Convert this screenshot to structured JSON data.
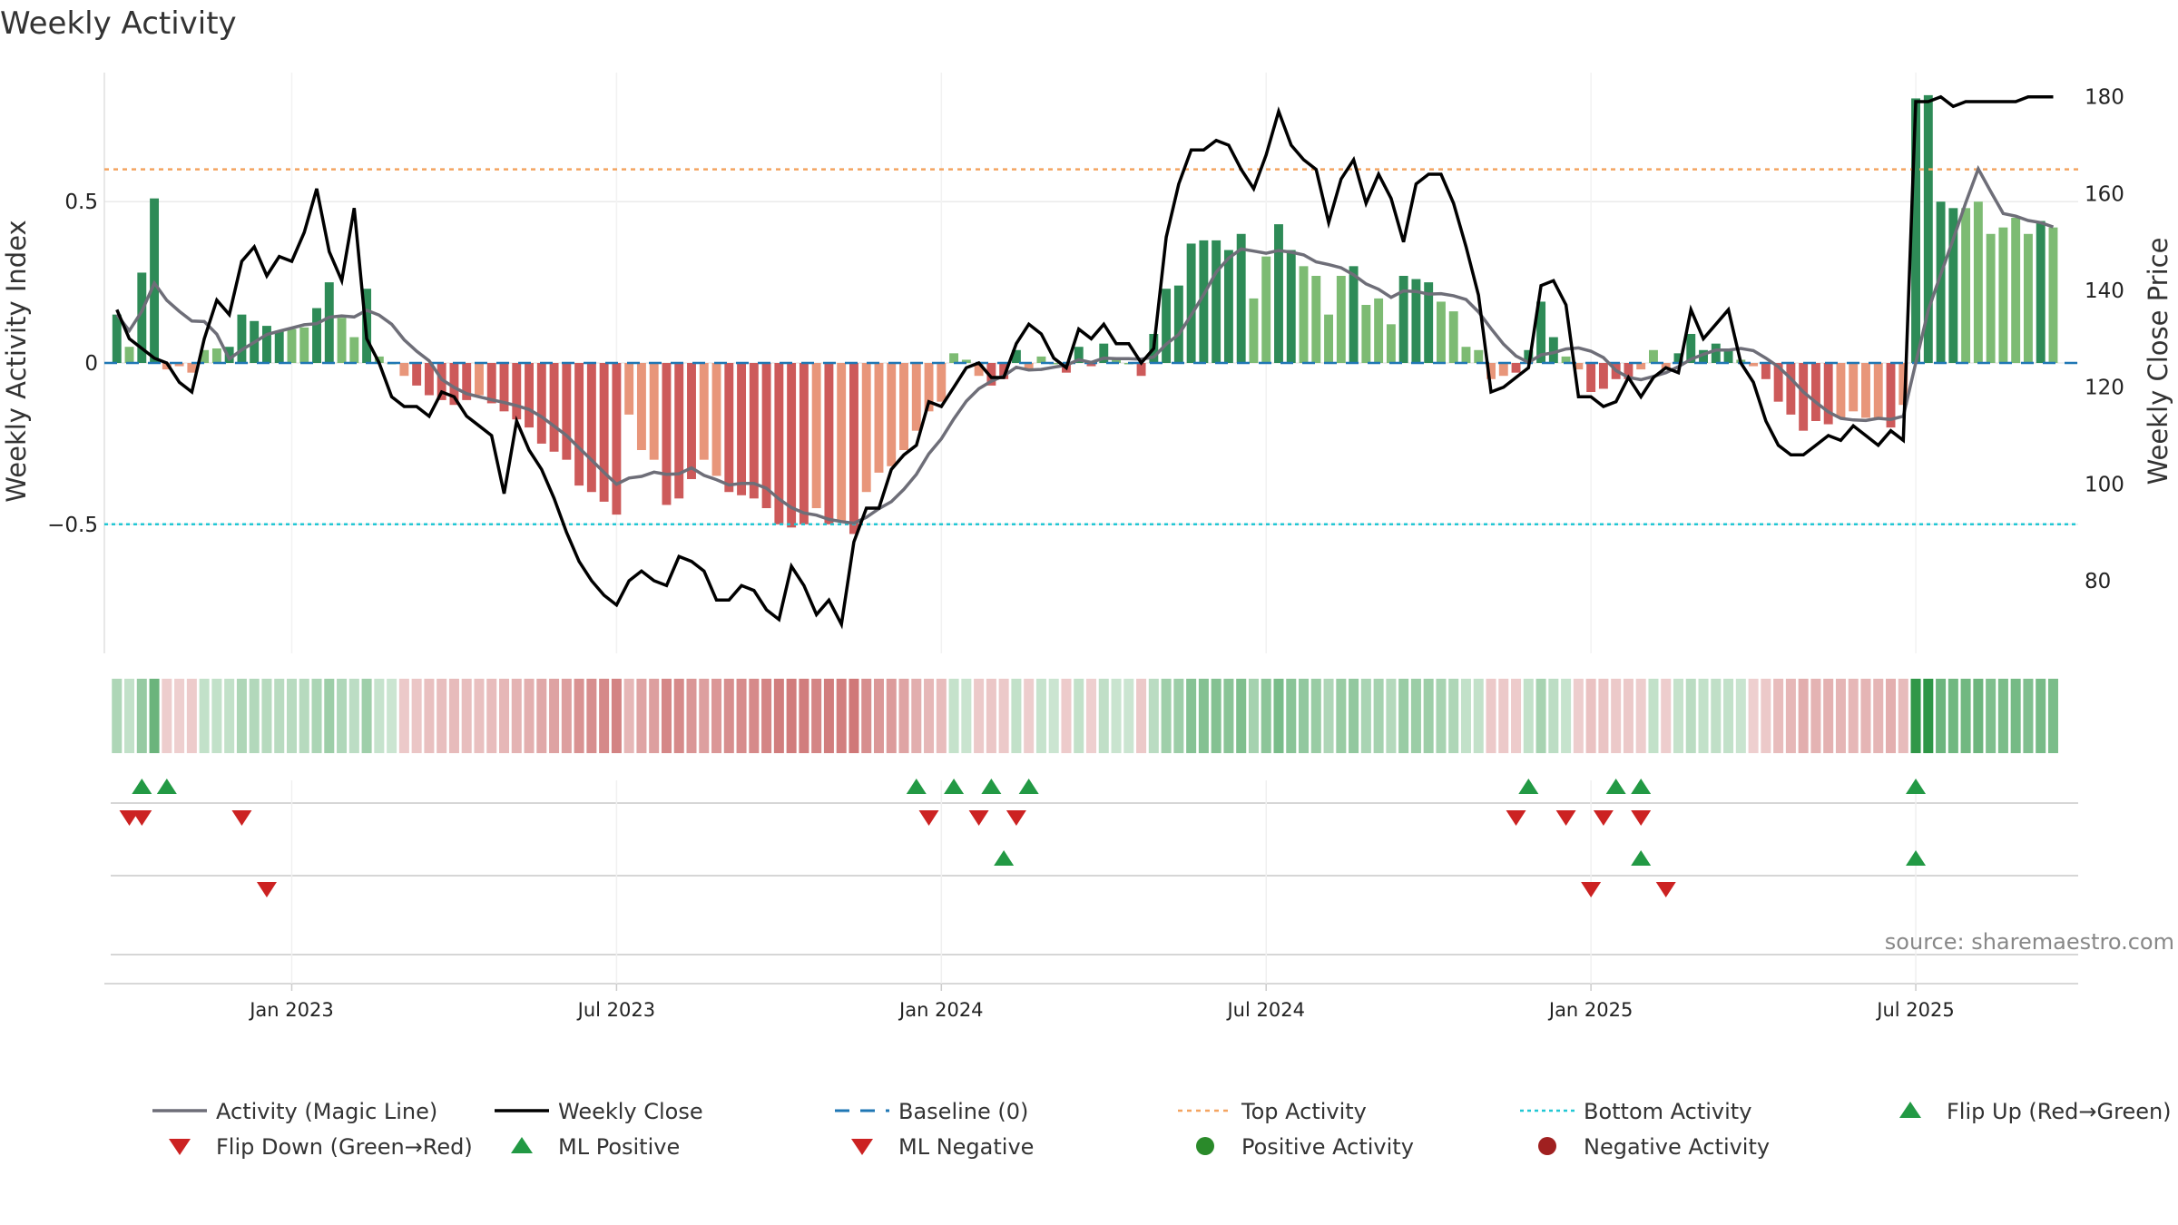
{
  "chart_data": {
    "type": "bar",
    "title": "Weekly Activity",
    "ylabel_left": "Weekly Activity Index",
    "ylabel_right": "Weekly Close Price",
    "ylim_left": [
      -0.9,
      0.9
    ],
    "ylim_right": [
      65,
      185
    ],
    "yticks_left": [
      {
        "v": 0.5,
        "label": "0.5"
      },
      {
        "v": 0,
        "label": "0"
      },
      {
        "v": -0.5,
        "label": "−0.5"
      }
    ],
    "yticks_right": [
      {
        "v": 180,
        "label": "180"
      },
      {
        "v": 160,
        "label": "160"
      },
      {
        "v": 140,
        "label": "140"
      },
      {
        "v": 120,
        "label": "120"
      },
      {
        "v": 100,
        "label": "100"
      },
      {
        "v": 80,
        "label": "80"
      }
    ],
    "x_week_range": [
      -8,
      150
    ],
    "xticks": [
      {
        "week": 7,
        "label": "Jan 2023"
      },
      {
        "week": 33,
        "label": "Jul 2023"
      },
      {
        "week": 59,
        "label": "Jan 2024"
      },
      {
        "week": 85,
        "label": "Jul 2024"
      },
      {
        "week": 111,
        "label": "Jan 2025"
      },
      {
        "week": 137,
        "label": "Jul 2025"
      }
    ],
    "top_activity": 0.6,
    "bottom_activity": -0.5,
    "baseline": 0,
    "colors": {
      "strong_green": "#2e8b57",
      "light_green": "#7dbb73",
      "strong_red": "#cd5a5a",
      "light_red": "#e8967a",
      "magic_line": "#6e6e78",
      "close_line": "#000000",
      "baseline": "#1f77b4",
      "top_line": "#f4a460",
      "bottom_line": "#22c7d4",
      "flip_up": "#229944",
      "flip_down": "#cc2222",
      "pos_dot": "#2a8a2a",
      "neg_dot": "#a02020"
    },
    "activity_anchors": [
      [
        -7,
        0.15
      ],
      [
        -6,
        0.05
      ],
      [
        -4,
        0.51
      ],
      [
        -3,
        -0.02
      ],
      [
        -2,
        -0.01
      ],
      [
        -1,
        -0.03
      ],
      [
        0,
        0.04
      ],
      [
        2,
        0.05
      ],
      [
        3,
        0.15
      ],
      [
        4,
        0.13
      ],
      [
        6,
        0.1
      ],
      [
        8,
        0.11
      ],
      [
        9,
        0.17
      ],
      [
        10,
        0.25
      ],
      [
        11,
        0.14
      ],
      [
        12,
        0.08
      ],
      [
        13,
        0.23
      ],
      [
        14,
        0.02
      ],
      [
        15,
        0.0
      ],
      [
        16,
        -0.04
      ],
      [
        18,
        -0.1
      ],
      [
        20,
        -0.13
      ],
      [
        22,
        -0.1
      ],
      [
        24,
        -0.15
      ],
      [
        26,
        -0.2
      ],
      [
        27,
        -0.25
      ],
      [
        29,
        -0.3
      ],
      [
        30,
        -0.38
      ],
      [
        31,
        -0.4
      ],
      [
        32,
        -0.43
      ],
      [
        33,
        -0.47
      ],
      [
        34,
        -0.16
      ],
      [
        35,
        -0.27
      ],
      [
        36,
        -0.3
      ],
      [
        37,
        -0.44
      ],
      [
        38,
        -0.42
      ],
      [
        40,
        -0.3
      ],
      [
        42,
        -0.4
      ],
      [
        44,
        -0.42
      ],
      [
        45,
        -0.45
      ],
      [
        46,
        -0.5
      ],
      [
        47,
        -0.51
      ],
      [
        48,
        -0.5
      ],
      [
        49,
        -0.45
      ],
      [
        50,
        -0.5
      ],
      [
        51,
        -0.49
      ],
      [
        52,
        -0.53
      ],
      [
        53,
        -0.4
      ],
      [
        54,
        -0.34
      ],
      [
        55,
        -0.32
      ],
      [
        56,
        -0.27
      ],
      [
        57,
        -0.21
      ],
      [
        58,
        -0.15
      ],
      [
        59,
        -0.12
      ],
      [
        60,
        0.03
      ],
      [
        61,
        0.01
      ],
      [
        62,
        -0.04
      ],
      [
        63,
        -0.07
      ],
      [
        64,
        -0.05
      ],
      [
        65,
        0.04
      ],
      [
        66,
        -0.02
      ],
      [
        67,
        0.02
      ],
      [
        68,
        0.0
      ],
      [
        69,
        -0.03
      ],
      [
        70,
        0.05
      ],
      [
        71,
        -0.01
      ],
      [
        72,
        0.06
      ],
      [
        73,
        0.01
      ],
      [
        74,
        0.0
      ],
      [
        75,
        -0.04
      ],
      [
        76,
        0.09
      ],
      [
        77,
        0.23
      ],
      [
        78,
        0.24
      ],
      [
        79,
        0.37
      ],
      [
        80,
        0.38
      ],
      [
        81,
        0.38
      ],
      [
        82,
        0.35
      ],
      [
        83,
        0.4
      ],
      [
        84,
        0.2
      ],
      [
        85,
        0.33
      ],
      [
        86,
        0.43
      ],
      [
        87,
        0.35
      ],
      [
        88,
        0.3
      ],
      [
        89,
        0.27
      ],
      [
        90,
        0.15
      ],
      [
        91,
        0.27
      ],
      [
        92,
        0.3
      ],
      [
        93,
        0.18
      ],
      [
        94,
        0.2
      ],
      [
        95,
        0.12
      ],
      [
        96,
        0.27
      ],
      [
        97,
        0.26
      ],
      [
        98,
        0.25
      ],
      [
        99,
        0.19
      ],
      [
        100,
        0.16
      ],
      [
        101,
        0.05
      ],
      [
        102,
        0.04
      ],
      [
        103,
        -0.05
      ],
      [
        104,
        -0.04
      ],
      [
        105,
        -0.03
      ],
      [
        106,
        0.04
      ],
      [
        107,
        0.19
      ],
      [
        108,
        0.08
      ],
      [
        109,
        0.02
      ],
      [
        110,
        -0.02
      ],
      [
        111,
        -0.09
      ],
      [
        112,
        -0.08
      ],
      [
        113,
        -0.05
      ],
      [
        114,
        -0.05
      ],
      [
        115,
        -0.02
      ],
      [
        116,
        0.04
      ],
      [
        117,
        -0.02
      ],
      [
        118,
        0.03
      ],
      [
        119,
        0.09
      ],
      [
        120,
        0.04
      ],
      [
        121,
        0.06
      ],
      [
        122,
        0.04
      ],
      [
        123,
        0.01
      ],
      [
        124,
        -0.01
      ],
      [
        125,
        -0.05
      ],
      [
        126,
        -0.12
      ],
      [
        127,
        -0.16
      ],
      [
        128,
        -0.21
      ],
      [
        129,
        -0.18
      ],
      [
        130,
        -0.19
      ],
      [
        131,
        -0.17
      ],
      [
        132,
        -0.15
      ],
      [
        133,
        -0.17
      ],
      [
        134,
        -0.17
      ],
      [
        135,
        -0.2
      ],
      [
        136,
        -0.13
      ],
      [
        137,
        0.82
      ],
      [
        138,
        0.83
      ],
      [
        139,
        0.5
      ],
      [
        140,
        0.48
      ],
      [
        141,
        0.48
      ],
      [
        142,
        0.5
      ],
      [
        143,
        0.4
      ],
      [
        144,
        0.42
      ],
      [
        145,
        0.45
      ],
      [
        146,
        0.4
      ],
      [
        147,
        0.44
      ],
      [
        148,
        0.42
      ]
    ],
    "close_anchors": [
      [
        -7,
        136
      ],
      [
        -6,
        130
      ],
      [
        -5,
        128
      ],
      [
        -4,
        126
      ],
      [
        -3,
        125
      ],
      [
        -2,
        121
      ],
      [
        -1,
        119
      ],
      [
        0,
        130
      ],
      [
        1,
        138
      ],
      [
        2,
        135
      ],
      [
        3,
        146
      ],
      [
        4,
        149
      ],
      [
        5,
        143
      ],
      [
        6,
        147
      ],
      [
        7,
        146
      ],
      [
        8,
        152
      ],
      [
        9,
        161
      ],
      [
        10,
        148
      ],
      [
        11,
        142
      ],
      [
        12,
        157
      ],
      [
        13,
        130
      ],
      [
        14,
        125
      ],
      [
        15,
        118
      ],
      [
        16,
        116
      ],
      [
        17,
        116
      ],
      [
        18,
        114
      ],
      [
        19,
        119
      ],
      [
        20,
        118
      ],
      [
        21,
        114
      ],
      [
        22,
        112
      ],
      [
        23,
        110
      ],
      [
        24,
        98
      ],
      [
        25,
        113
      ],
      [
        26,
        107
      ],
      [
        27,
        103
      ],
      [
        28,
        97
      ],
      [
        29,
        90
      ],
      [
        30,
        84
      ],
      [
        31,
        80
      ],
      [
        32,
        77
      ],
      [
        33,
        75
      ],
      [
        34,
        80
      ],
      [
        35,
        82
      ],
      [
        36,
        80
      ],
      [
        37,
        79
      ],
      [
        38,
        85
      ],
      [
        39,
        84
      ],
      [
        40,
        82
      ],
      [
        41,
        76
      ],
      [
        42,
        76
      ],
      [
        43,
        79
      ],
      [
        44,
        78
      ],
      [
        45,
        74
      ],
      [
        46,
        72
      ],
      [
        47,
        83
      ],
      [
        48,
        79
      ],
      [
        49,
        73
      ],
      [
        50,
        76
      ],
      [
        51,
        71
      ],
      [
        52,
        88
      ],
      [
        53,
        95
      ],
      [
        54,
        95
      ],
      [
        55,
        103
      ],
      [
        56,
        106
      ],
      [
        57,
        108
      ],
      [
        58,
        117
      ],
      [
        59,
        116
      ],
      [
        60,
        120
      ],
      [
        61,
        124
      ],
      [
        62,
        125
      ],
      [
        63,
        122
      ],
      [
        64,
        122
      ],
      [
        65,
        129
      ],
      [
        66,
        133
      ],
      [
        67,
        131
      ],
      [
        68,
        126
      ],
      [
        69,
        124
      ],
      [
        70,
        132
      ],
      [
        71,
        130
      ],
      [
        72,
        133
      ],
      [
        73,
        129
      ],
      [
        74,
        129
      ],
      [
        75,
        125
      ],
      [
        76,
        128
      ],
      [
        77,
        151
      ],
      [
        78,
        162
      ],
      [
        79,
        169
      ],
      [
        80,
        169
      ],
      [
        81,
        171
      ],
      [
        82,
        170
      ],
      [
        83,
        165
      ],
      [
        84,
        161
      ],
      [
        85,
        168
      ],
      [
        86,
        177
      ],
      [
        87,
        170
      ],
      [
        88,
        167
      ],
      [
        89,
        165
      ],
      [
        90,
        154
      ],
      [
        91,
        163
      ],
      [
        92,
        167
      ],
      [
        93,
        158
      ],
      [
        94,
        164
      ],
      [
        95,
        159
      ],
      [
        96,
        150
      ],
      [
        97,
        162
      ],
      [
        98,
        164
      ],
      [
        99,
        164
      ],
      [
        100,
        158
      ],
      [
        101,
        149
      ],
      [
        102,
        139
      ],
      [
        103,
        119
      ],
      [
        104,
        120
      ],
      [
        105,
        122
      ],
      [
        106,
        124
      ],
      [
        107,
        141
      ],
      [
        108,
        142
      ],
      [
        109,
        137
      ],
      [
        110,
        118
      ],
      [
        111,
        118
      ],
      [
        112,
        116
      ],
      [
        113,
        117
      ],
      [
        114,
        122
      ],
      [
        115,
        118
      ],
      [
        116,
        122
      ],
      [
        117,
        124
      ],
      [
        118,
        123
      ],
      [
        119,
        136
      ],
      [
        120,
        130
      ],
      [
        121,
        133
      ],
      [
        122,
        136
      ],
      [
        123,
        125
      ],
      [
        124,
        121
      ],
      [
        125,
        113
      ],
      [
        126,
        108
      ],
      [
        127,
        106
      ],
      [
        128,
        106
      ],
      [
        129,
        108
      ],
      [
        130,
        110
      ],
      [
        131,
        109
      ],
      [
        132,
        112
      ],
      [
        133,
        110
      ],
      [
        134,
        108
      ],
      [
        135,
        111
      ],
      [
        136,
        109
      ],
      [
        137,
        179
      ],
      [
        138,
        179
      ],
      [
        139,
        180
      ],
      [
        140,
        178
      ],
      [
        141,
        179
      ],
      [
        142,
        179
      ],
      [
        143,
        179
      ],
      [
        144,
        179
      ],
      [
        145,
        179
      ],
      [
        146,
        180
      ],
      [
        147,
        180
      ],
      [
        148,
        180
      ]
    ],
    "flip_up_weeks": [
      -5,
      -3,
      57,
      60,
      63,
      66,
      106,
      113,
      115,
      137
    ],
    "flip_down_weeks": [
      -6,
      -5,
      3,
      58,
      62,
      65,
      105,
      109,
      112,
      115
    ],
    "ml_positive_weeks": [
      64,
      115,
      137
    ],
    "ml_negative_weeks": [
      5,
      111,
      117
    ],
    "legend": [
      {
        "key": "magic",
        "label": "Activity (Magic Line)"
      },
      {
        "key": "close",
        "label": "Weekly Close"
      },
      {
        "key": "baseline",
        "label": "Baseline (0)"
      },
      {
        "key": "top",
        "label": "Top Activity"
      },
      {
        "key": "bottom",
        "label": "Bottom Activity"
      },
      {
        "key": "flipup",
        "label": "Flip Up (Red→Green)"
      },
      {
        "key": "flipdown",
        "label": "Flip Down (Green→Red)"
      },
      {
        "key": "mlpos",
        "label": "ML Positive"
      },
      {
        "key": "mlneg",
        "label": "ML Negative"
      },
      {
        "key": "posdot",
        "label": "Positive Activity"
      },
      {
        "key": "negdot",
        "label": "Negative Activity"
      }
    ],
    "source": "source: sharemaestro.com"
  }
}
